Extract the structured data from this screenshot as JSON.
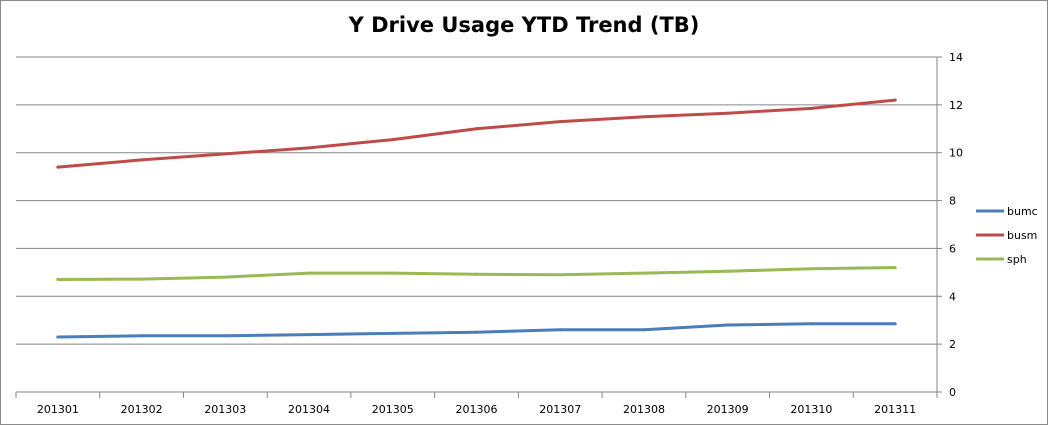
{
  "chart_data": {
    "type": "line",
    "title": "Y Drive Usage YTD Trend (TB)",
    "xlabel": "",
    "ylabel": "",
    "categories": [
      "201301",
      "201302",
      "201303",
      "201304",
      "201305",
      "201306",
      "201307",
      "201308",
      "201309",
      "201310",
      "201311"
    ],
    "ylim": [
      0,
      14
    ],
    "yticks": [
      0,
      2,
      4,
      6,
      8,
      10,
      12,
      14
    ],
    "y_axis_side": "right",
    "grid": true,
    "legend_position": "right",
    "series": [
      {
        "name": "bumc",
        "color": "#4a7ebb",
        "values": [
          2.3,
          2.35,
          2.35,
          2.4,
          2.45,
          2.5,
          2.6,
          2.6,
          2.8,
          2.85,
          2.85
        ]
      },
      {
        "name": "busm",
        "color": "#be4b48",
        "values": [
          9.4,
          9.7,
          9.95,
          10.2,
          10.55,
          11.0,
          11.3,
          11.5,
          11.65,
          11.85,
          12.2
        ]
      },
      {
        "name": "sph",
        "color": "#98b954",
        "values": [
          4.7,
          4.72,
          4.8,
          4.97,
          4.97,
          4.92,
          4.9,
          4.97,
          5.05,
          5.15,
          5.2
        ]
      }
    ]
  }
}
